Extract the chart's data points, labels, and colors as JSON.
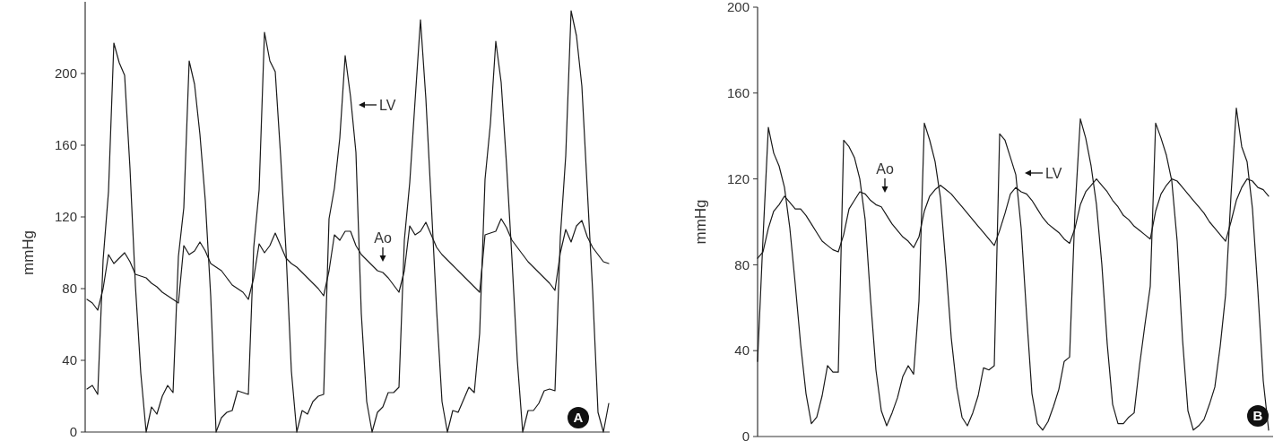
{
  "chart_data": [
    {
      "type": "line",
      "ylabel": "mmHg",
      "ylim": [
        0,
        240
      ],
      "yticks": [
        0,
        40,
        80,
        120,
        160,
        200
      ],
      "tick_labels": "y",
      "grid": false,
      "categories": [
        null,
        null,
        null,
        null,
        null,
        null,
        null,
        null,
        null,
        null,
        null,
        null,
        null,
        null,
        null,
        null,
        null,
        null,
        null,
        null,
        null,
        null,
        null,
        null,
        null,
        null,
        null,
        null,
        null,
        null,
        null,
        null,
        null,
        null,
        null,
        null,
        null,
        null,
        null,
        null,
        null,
        null,
        null,
        null,
        null,
        null,
        null,
        null,
        null,
        null,
        null,
        null,
        null,
        null,
        null,
        null,
        null,
        null,
        null,
        null,
        null,
        null,
        null,
        null,
        null,
        null,
        null,
        null,
        null,
        null,
        null,
        null,
        null,
        null,
        null,
        null,
        null,
        null,
        null,
        null,
        null,
        null,
        null,
        null,
        null,
        null,
        null,
        null,
        null,
        null,
        null,
        null,
        null,
        null,
        null,
        null,
        null,
        null
      ],
      "series": [
        {
          "color": "#1a1a1a",
          "values": [
            24,
            26,
            21,
            96,
            134,
            217,
            206,
            199,
            147,
            82,
            33,
            0,
            14,
            10,
            20,
            26,
            22,
            98,
            125,
            207,
            194,
            166,
            129,
            76,
            0,
            8,
            11,
            12,
            23,
            22,
            21,
            103,
            135,
            223,
            207,
            201,
            154,
            101,
            34,
            0,
            12,
            10,
            17,
            20,
            21,
            119,
            136,
            164,
            210,
            187,
            156,
            66,
            17,
            0,
            11,
            14,
            22,
            22,
            25,
            107,
            139,
            185,
            230,
            186,
            128,
            68,
            17,
            0,
            12,
            11,
            18,
            25,
            22,
            55,
            141,
            172,
            218,
            195,
            149,
            97,
            40,
            0,
            12,
            12,
            16,
            23,
            24,
            23,
            109,
            154,
            235,
            221,
            193,
            136,
            79,
            11,
            0,
            16
          ]
        },
        {
          "color": "#1a1a1a",
          "values": [
            74,
            72,
            68,
            80,
            99,
            94,
            97,
            100,
            95,
            88,
            87,
            86,
            83,
            81,
            78,
            76,
            74,
            72,
            104,
            99,
            101,
            106,
            101,
            94,
            92,
            90,
            86,
            82,
            80,
            78,
            74,
            86,
            105,
            100,
            104,
            111,
            104,
            97,
            94,
            92,
            89,
            86,
            83,
            80,
            76,
            90,
            110,
            107,
            112,
            112,
            104,
            99,
            96,
            93,
            90,
            89,
            86,
            82,
            78,
            90,
            115,
            110,
            112,
            117,
            110,
            103,
            99,
            96,
            93,
            90,
            87,
            84,
            81,
            78,
            110,
            111,
            112,
            119,
            114,
            107,
            103,
            99,
            95,
            92,
            89,
            86,
            83,
            79,
            100,
            113,
            106,
            115,
            118,
            109,
            103,
            99,
            95,
            94
          ]
        }
      ],
      "annotations": [
        "LV",
        "Ao",
        "A"
      ]
    },
    {
      "type": "line",
      "ylabel": "mmHg",
      "ylim": [
        0,
        200
      ],
      "yticks": [
        0,
        40,
        80,
        120,
        160,
        200
      ],
      "tick_labels": "y",
      "grid": false,
      "categories": [
        null,
        null,
        null,
        null,
        null,
        null,
        null,
        null,
        null,
        null,
        null,
        null,
        null,
        null,
        null,
        null,
        null,
        null,
        null,
        null,
        null,
        null,
        null,
        null,
        null,
        null,
        null,
        null,
        null,
        null,
        null,
        null,
        null,
        null,
        null,
        null,
        null,
        null,
        null,
        null,
        null,
        null,
        null,
        null,
        null,
        null,
        null,
        null,
        null,
        null,
        null,
        null,
        null,
        null,
        null,
        null,
        null,
        null,
        null,
        null,
        null,
        null,
        null,
        null,
        null,
        null,
        null,
        null,
        null,
        null,
        null,
        null,
        null,
        null,
        null,
        null,
        null,
        null,
        null,
        null,
        null,
        null,
        null,
        null,
        null,
        null,
        null,
        null,
        null,
        null,
        null,
        null,
        null,
        null,
        null,
        null
      ],
      "series": [
        {
          "color": "#1a1a1a",
          "values": [
            35,
            92,
            144,
            132,
            126,
            116,
            97,
            71,
            43,
            20,
            6,
            9,
            19,
            33,
            30,
            30,
            138,
            135,
            130,
            120,
            101,
            64,
            31,
            12,
            5,
            11,
            18,
            28,
            33,
            29,
            63,
            146,
            138,
            128,
            111,
            80,
            46,
            23,
            9,
            5,
            11,
            19,
            32,
            31,
            33,
            141,
            138,
            130,
            122,
            97,
            57,
            20,
            6,
            3,
            7,
            14,
            22,
            35,
            37,
            105,
            148,
            139,
            126,
            108,
            80,
            43,
            15,
            6,
            6,
            9,
            11,
            33,
            52,
            70,
            146,
            139,
            131,
            119,
            91,
            45,
            12,
            3,
            5,
            8,
            15,
            23,
            42,
            66,
            112,
            153,
            135,
            128,
            106,
            68,
            26,
            3
          ]
        },
        {
          "color": "#1a1a1a",
          "values": [
            83,
            86,
            97,
            105,
            108,
            112,
            109,
            106,
            106,
            103,
            99,
            95,
            91,
            89,
            87,
            86,
            94,
            106,
            110,
            114,
            113,
            110,
            108,
            107,
            103,
            99,
            96,
            93,
            91,
            88,
            93,
            105,
            112,
            115,
            117,
            115,
            113,
            110,
            107,
            104,
            101,
            98,
            95,
            92,
            89,
            96,
            104,
            113,
            116,
            114,
            113,
            110,
            106,
            102,
            99,
            97,
            95,
            92,
            90,
            97,
            108,
            114,
            117,
            120,
            117,
            114,
            110,
            107,
            103,
            101,
            98,
            96,
            94,
            92,
            105,
            113,
            117,
            120,
            119,
            116,
            113,
            110,
            107,
            104,
            100,
            97,
            94,
            91,
            100,
            110,
            116,
            120,
            119,
            116,
            115,
            112
          ]
        }
      ],
      "annotations": [
        "LV",
        "Ao",
        "B"
      ]
    }
  ]
}
